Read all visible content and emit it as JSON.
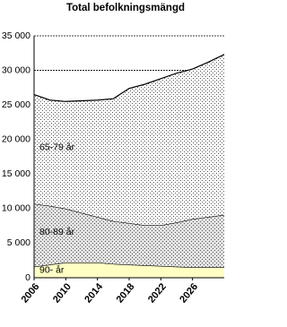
{
  "chart_data": {
    "type": "stacked-area",
    "title": "Total befolkningsmängd",
    "x": [
      2006,
      2008,
      2010,
      2012,
      2014,
      2016,
      2018,
      2020,
      2022,
      2024,
      2026,
      2028,
      2030
    ],
    "series": [
      {
        "name": "90- år",
        "color": "#ffffc4",
        "values": [
          1600,
          1900,
          2200,
          2200,
          2200,
          2000,
          1900,
          1800,
          1700,
          1600,
          1500,
          1500,
          1500
        ]
      },
      {
        "name": "80-89 år",
        "color": "#e2e2e2",
        "hatch": "dots",
        "values": [
          9100,
          8500,
          7800,
          7200,
          6600,
          6200,
          6000,
          5800,
          5900,
          6400,
          7000,
          7300,
          7600
        ]
      },
      {
        "name": "65-79 år",
        "color": "#ffffff",
        "hatch": "dots",
        "values": [
          15800,
          15300,
          15500,
          16200,
          16900,
          17700,
          19500,
          20400,
          21200,
          21600,
          21700,
          22400,
          23200
        ]
      }
    ],
    "xlim": [
      2006,
      2030
    ],
    "xticks": [
      2006,
      2010,
      2014,
      2018,
      2022,
      2026
    ],
    "ylim": [
      0,
      35000
    ],
    "yticks": [
      0,
      {
        "value": 5000,
        "label": "5 000"
      },
      {
        "value": 10000,
        "label": "10 000"
      },
      {
        "value": 15000,
        "label": "15 000"
      },
      {
        "value": 20000,
        "label": "20 000"
      },
      {
        "value": 25000,
        "label": "25 000"
      },
      {
        "value": 30000,
        "label": "30 000"
      },
      {
        "value": 35000,
        "label": "35 000"
      }
    ],
    "grid": true
  }
}
